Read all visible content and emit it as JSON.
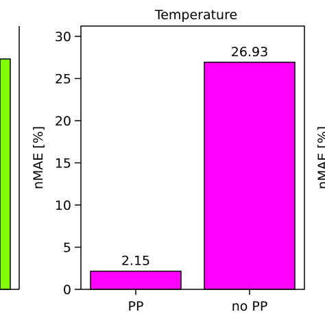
{
  "chart_data": {
    "type": "bar",
    "title": "Temperature",
    "ylabel": "nMAE [%]",
    "xlabel": "",
    "categories": [
      "PP",
      "no PP"
    ],
    "values": [
      2.15,
      26.93
    ],
    "value_labels": [
      "2.15",
      "26.93"
    ],
    "ylim": [
      0,
      31
    ],
    "yticks": [
      0,
      5,
      10,
      15,
      20,
      25,
      30
    ],
    "ytick_labels": [
      "0",
      "5",
      "10",
      "15",
      "20",
      "25",
      "30"
    ],
    "bar_color": "#ff00ff",
    "grid": false,
    "legend": "none"
  },
  "left_panel": {
    "bar_color": "#80ff00"
  },
  "right_panel": {
    "ylabel": "nMAE [%]"
  }
}
